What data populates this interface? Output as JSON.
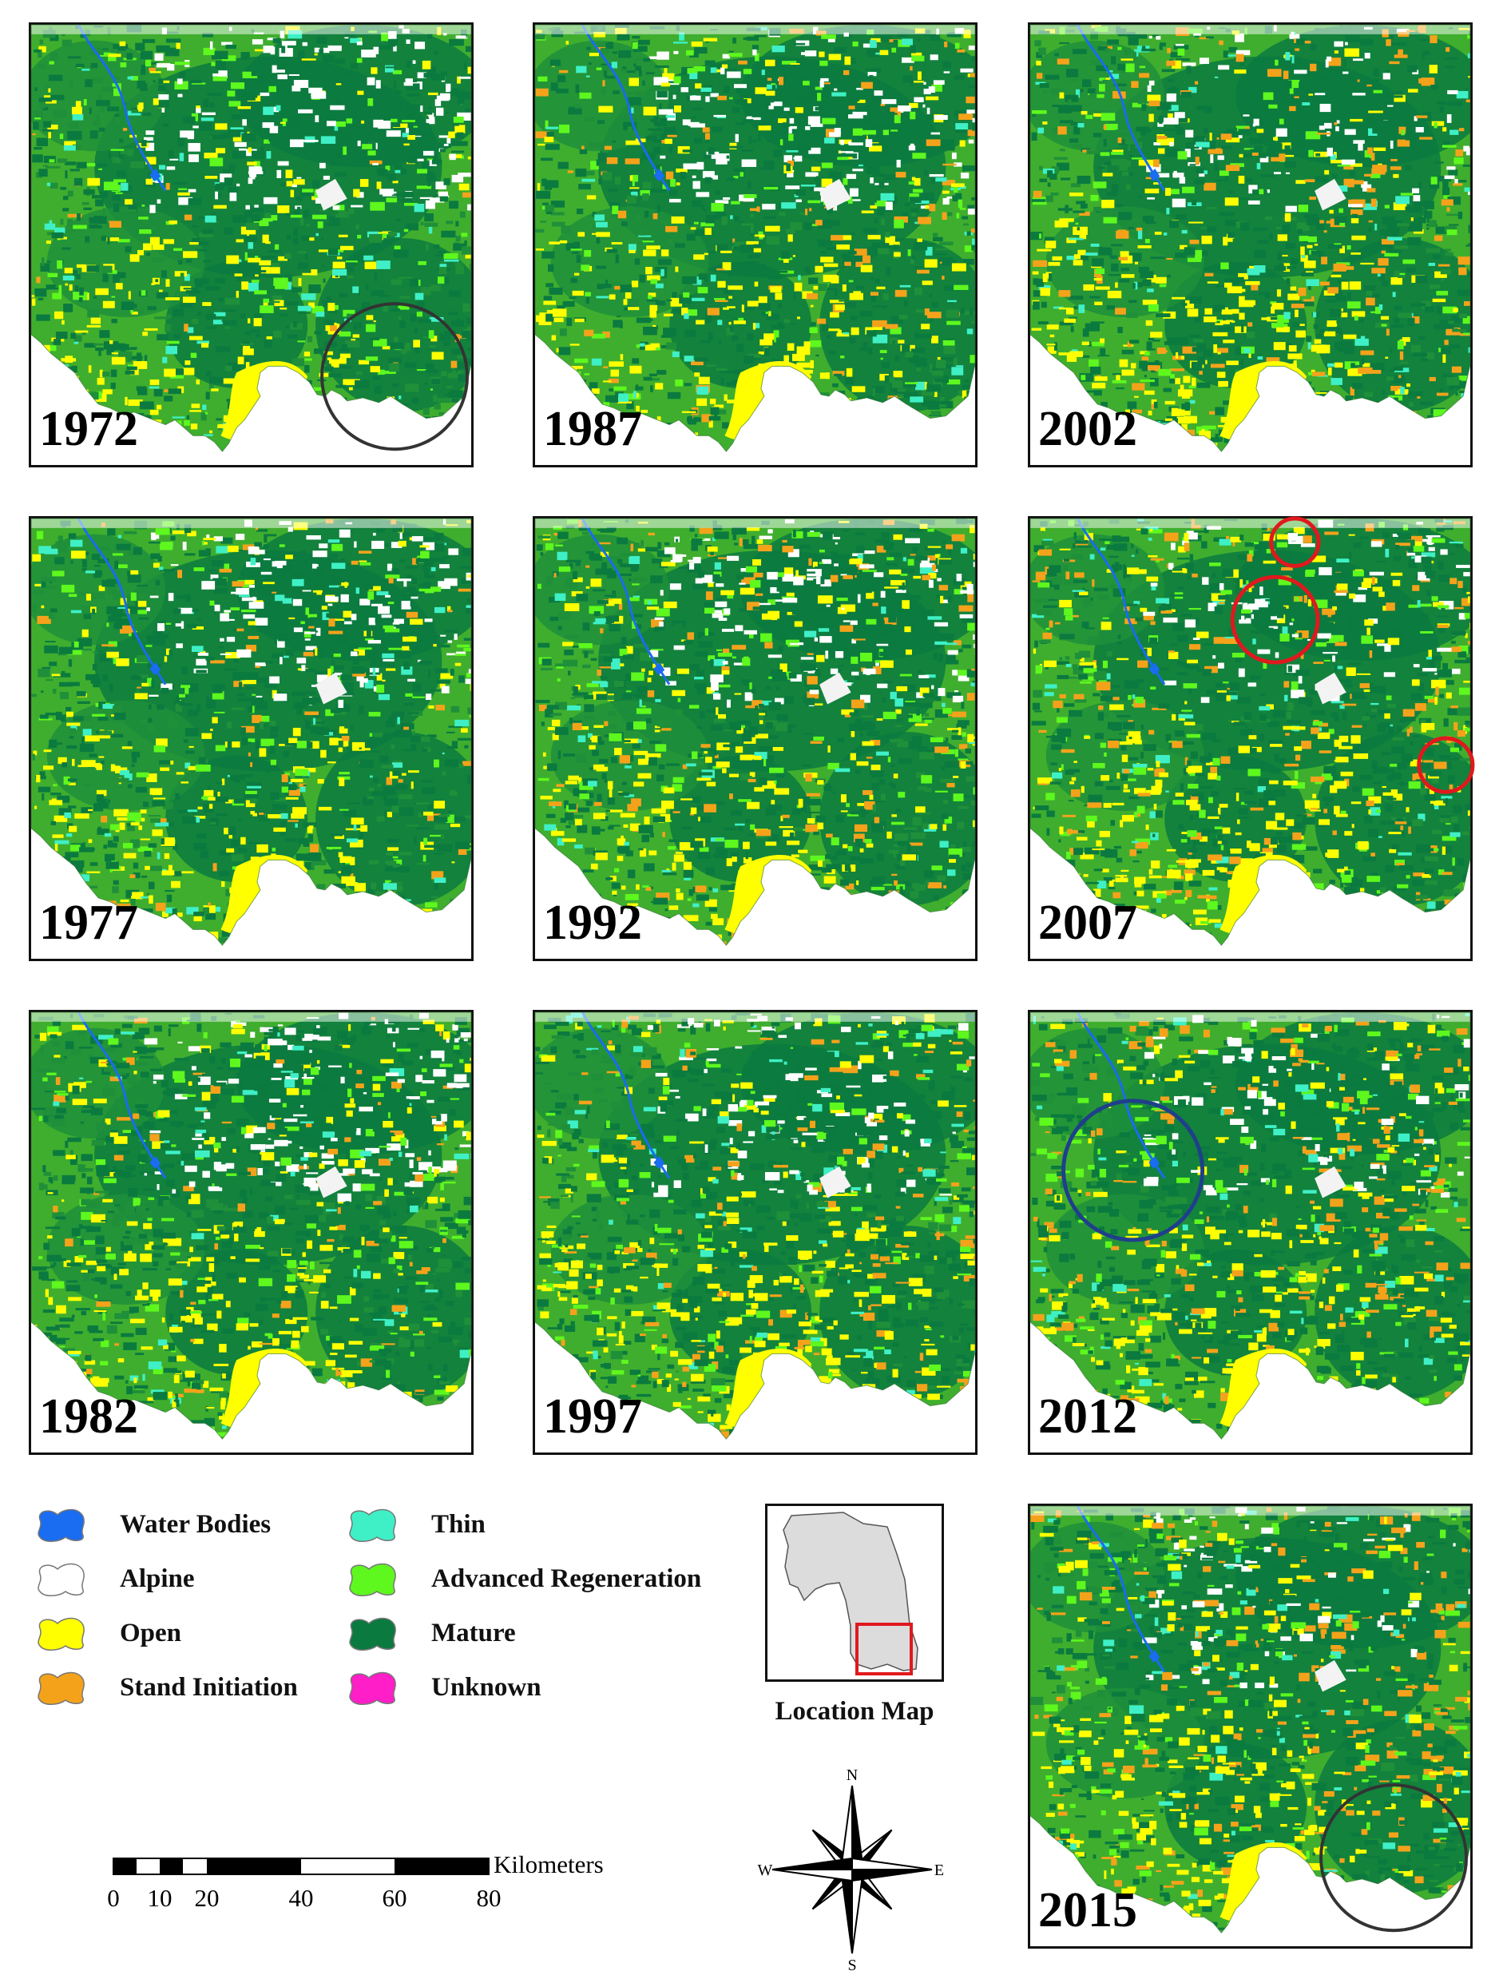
{
  "panels": [
    {
      "year": "1972",
      "variant": 0,
      "overlay": "black-circle-se"
    },
    {
      "year": "1987",
      "variant": 3,
      "overlay": "none"
    },
    {
      "year": "2002",
      "variant": 6,
      "overlay": "none"
    },
    {
      "year": "1977",
      "variant": 1,
      "overlay": "none"
    },
    {
      "year": "1992",
      "variant": 4,
      "overlay": "none"
    },
    {
      "year": "2007",
      "variant": 7,
      "overlay": "red-circles"
    },
    {
      "year": "1982",
      "variant": 2,
      "overlay": "none"
    },
    {
      "year": "1997",
      "variant": 5,
      "overlay": "none"
    },
    {
      "year": "2012",
      "variant": 8,
      "overlay": "blue-circle"
    },
    {
      "year": "2015",
      "variant": 9,
      "overlay": "black-circle-se"
    }
  ],
  "legend": [
    {
      "label": "Water Bodies",
      "color": "#1a6cf0"
    },
    {
      "label": "Alpine",
      "color": "#ffffff"
    },
    {
      "label": "Open",
      "color": "#ffff00"
    },
    {
      "label": "Stand Initiation",
      "color": "#f5a21b"
    },
    {
      "label": "Thin",
      "color": "#3ff0c6"
    },
    {
      "label": "Advanced Regeneration",
      "color": "#5ef71e"
    },
    {
      "label": "Mature",
      "color": "#0b7a3f"
    },
    {
      "label": "Unknown",
      "color": "#ff1ec8"
    }
  ],
  "location_map": {
    "title": "Location Map",
    "highlight_color": "#e0191e"
  },
  "scale_bar": {
    "unit": "Kilometers",
    "ticks": [
      "0",
      "10",
      "20",
      "40",
      "60",
      "80"
    ]
  },
  "compass": {
    "n": "N",
    "s": "S",
    "e": "E",
    "w": "W"
  },
  "overlay_colors": {
    "black": "#333333",
    "red": "#e0191e",
    "blue": "#1f3f8a"
  }
}
